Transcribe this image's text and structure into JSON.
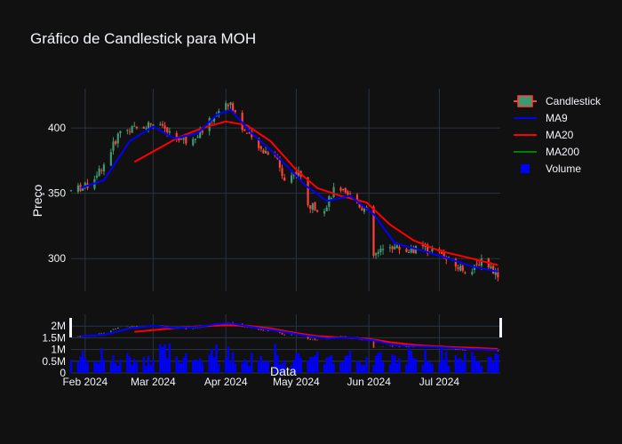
{
  "title": "Gráfico de Candlestick para MOH",
  "chart_data": [
    {
      "type": "candlestick",
      "title": "Gráfico de Candlestick para MOH",
      "ylabel": "Preço",
      "ylim": [
        275,
        430
      ],
      "yticks": [
        300,
        350,
        400
      ],
      "xlim": [
        "2024-01-26",
        "2024-07-27"
      ],
      "xticks": [
        {
          "date": "2024-02-01",
          "label": "Feb 2024"
        },
        {
          "date": "2024-03-01",
          "label": "Mar 2024"
        },
        {
          "date": "2024-04-01",
          "label": "Apr 2024"
        },
        {
          "date": "2024-05-01",
          "label": "May 2024"
        },
        {
          "date": "2024-06-01",
          "label": "Jun 2024"
        },
        {
          "date": "2024-07-01",
          "label": "Jul 2024"
        }
      ],
      "grid": true,
      "legend_position": "top-right",
      "colors": {
        "up": "#3d9970",
        "down": "#ff4136",
        "ma9": "#0000ff",
        "ma20": "#ff0000",
        "ma200": "#008000",
        "volume": "#0000ff"
      },
      "price_anchors": [
        {
          "date": "2024-01-26",
          "close": 352
        },
        {
          "date": "2024-02-02",
          "close": 356
        },
        {
          "date": "2024-02-09",
          "close": 372
        },
        {
          "date": "2024-02-16",
          "close": 398
        },
        {
          "date": "2024-02-23",
          "close": 400
        },
        {
          "date": "2024-03-01",
          "close": 404
        },
        {
          "date": "2024-03-08",
          "close": 396
        },
        {
          "date": "2024-03-15",
          "close": 390
        },
        {
          "date": "2024-03-22",
          "close": 398
        },
        {
          "date": "2024-03-29",
          "close": 414
        },
        {
          "date": "2024-04-03",
          "close": 420
        },
        {
          "date": "2024-04-08",
          "close": 400
        },
        {
          "date": "2024-04-15",
          "close": 384
        },
        {
          "date": "2024-04-22",
          "close": 380
        },
        {
          "date": "2024-04-26",
          "close": 360
        },
        {
          "date": "2024-05-02",
          "close": 368
        },
        {
          "date": "2024-05-06",
          "close": 340
        },
        {
          "date": "2024-05-13",
          "close": 338
        },
        {
          "date": "2024-05-17",
          "close": 352
        },
        {
          "date": "2024-05-24",
          "close": 348
        },
        {
          "date": "2024-05-31",
          "close": 336
        },
        {
          "date": "2024-06-03",
          "close": 302
        },
        {
          "date": "2024-06-10",
          "close": 310
        },
        {
          "date": "2024-06-17",
          "close": 306
        },
        {
          "date": "2024-06-24",
          "close": 308
        },
        {
          "date": "2024-07-01",
          "close": 304
        },
        {
          "date": "2024-07-08",
          "close": 294
        },
        {
          "date": "2024-07-15",
          "close": 290
        },
        {
          "date": "2024-07-19",
          "close": 300
        },
        {
          "date": "2024-07-26",
          "close": 288
        }
      ],
      "ma9_anchors": [
        {
          "date": "2024-01-30",
          "value": 354
        },
        {
          "date": "2024-02-09",
          "value": 360
        },
        {
          "date": "2024-02-20",
          "value": 390
        },
        {
          "date": "2024-03-01",
          "value": 401
        },
        {
          "date": "2024-03-10",
          "value": 392
        },
        {
          "date": "2024-03-20",
          "value": 396
        },
        {
          "date": "2024-03-28",
          "value": 410
        },
        {
          "date": "2024-04-03",
          "value": 414
        },
        {
          "date": "2024-04-12",
          "value": 396
        },
        {
          "date": "2024-04-22",
          "value": 380
        },
        {
          "date": "2024-05-05",
          "value": 356
        },
        {
          "date": "2024-05-14",
          "value": 344
        },
        {
          "date": "2024-05-24",
          "value": 348
        },
        {
          "date": "2024-06-03",
          "value": 334
        },
        {
          "date": "2024-06-12",
          "value": 312
        },
        {
          "date": "2024-06-24",
          "value": 306
        },
        {
          "date": "2024-07-05",
          "value": 300
        },
        {
          "date": "2024-07-15",
          "value": 294
        },
        {
          "date": "2024-07-26",
          "value": 290
        }
      ],
      "ma20_anchors": [
        {
          "date": "2024-02-22",
          "value": 374
        },
        {
          "date": "2024-03-01",
          "value": 382
        },
        {
          "date": "2024-03-12",
          "value": 393
        },
        {
          "date": "2024-03-22",
          "value": 400
        },
        {
          "date": "2024-04-01",
          "value": 405
        },
        {
          "date": "2024-04-10",
          "value": 402
        },
        {
          "date": "2024-04-20",
          "value": 390
        },
        {
          "date": "2024-05-01",
          "value": 368
        },
        {
          "date": "2024-05-10",
          "value": 354
        },
        {
          "date": "2024-05-20",
          "value": 348
        },
        {
          "date": "2024-05-31",
          "value": 343
        },
        {
          "date": "2024-06-10",
          "value": 326
        },
        {
          "date": "2024-06-20",
          "value": 314
        },
        {
          "date": "2024-07-01",
          "value": 306
        },
        {
          "date": "2024-07-15",
          "value": 300
        },
        {
          "date": "2024-07-26",
          "value": 295
        }
      ],
      "series": [
        {
          "name": "Candlestick"
        },
        {
          "name": "MA9"
        },
        {
          "name": "MA20"
        },
        {
          "name": "MA200"
        },
        {
          "name": "Volume"
        }
      ]
    },
    {
      "type": "bar",
      "xlabel": "Data",
      "ylim": [
        0,
        2500000
      ],
      "ytick_labels": [
        {
          "value": 0,
          "label": "0"
        },
        {
          "value": 500000,
          "label": "0.5M"
        },
        {
          "value": 1000000,
          "label": "1M"
        },
        {
          "value": 1500000,
          "label": "1.5M"
        },
        {
          "value": 2000000,
          "label": "2M"
        }
      ],
      "volume_range": [
        300000,
        1400000
      ]
    }
  ],
  "legend": [
    {
      "label": "Candlestick"
    },
    {
      "label": "MA9"
    },
    {
      "label": "MA20"
    },
    {
      "label": "MA200"
    },
    {
      "label": "Volume"
    }
  ]
}
